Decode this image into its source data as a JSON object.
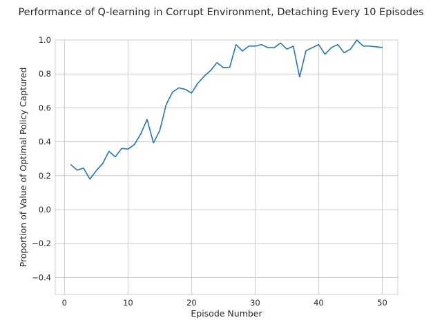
{
  "chart_data": {
    "type": "line",
    "title": "Performance of Q-learning in Corrupt Environment, Detaching Every 10 Episodes",
    "xlabel": "Episode Number",
    "ylabel": "Proportion of Value of Optimal Policy Captured",
    "xlim": [
      -1.45,
      52.45
    ],
    "ylim": [
      -0.5,
      1.0
    ],
    "xticks": [
      0,
      10,
      20,
      30,
      40,
      50
    ],
    "yticks": [
      -0.4,
      -0.2,
      0.0,
      0.2,
      0.4,
      0.6,
      0.8,
      1.0
    ],
    "xtick_labels": [
      "0",
      "10",
      "20",
      "30",
      "40",
      "50"
    ],
    "ytick_labels": [
      "−0.4",
      "−0.2",
      "0.0",
      "0.2",
      "0.4",
      "0.6",
      "0.8",
      "1.0"
    ],
    "grid": true,
    "series": [
      {
        "color": "#1f77b4",
        "x": [
          1,
          2,
          3,
          4,
          5,
          6,
          7,
          8,
          9,
          10,
          11,
          12,
          13,
          14,
          15,
          16,
          17,
          18,
          19,
          20,
          21,
          22,
          23,
          24,
          25,
          26,
          27,
          28,
          29,
          30,
          31,
          32,
          33,
          34,
          35,
          36,
          37,
          38,
          39,
          40,
          41,
          42,
          43,
          44,
          45,
          46,
          47,
          48,
          49,
          50
        ],
        "values": [
          0.265,
          0.233,
          0.245,
          0.18,
          0.23,
          0.271,
          0.344,
          0.311,
          0.361,
          0.357,
          0.384,
          0.446,
          0.532,
          0.393,
          0.467,
          0.619,
          0.693,
          0.718,
          0.709,
          0.687,
          0.746,
          0.787,
          0.82,
          0.867,
          0.837,
          0.839,
          0.973,
          0.935,
          0.964,
          0.964,
          0.973,
          0.955,
          0.955,
          0.982,
          0.946,
          0.964,
          0.782,
          0.937,
          0.955,
          0.973,
          0.916,
          0.955,
          0.973,
          0.925,
          0.946,
          1.0,
          0.964,
          0.964,
          0.96,
          0.956
        ]
      }
    ]
  }
}
